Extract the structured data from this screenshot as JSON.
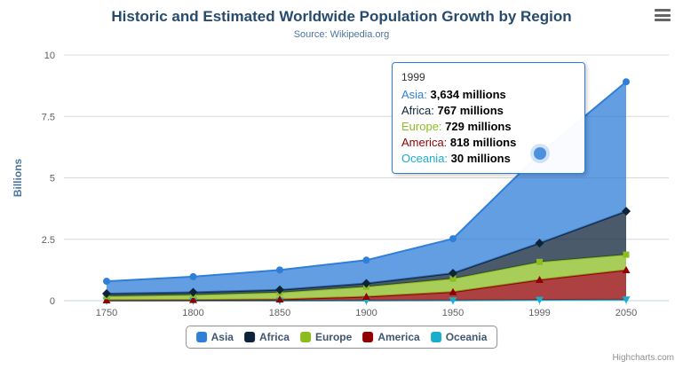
{
  "credits": "Highcharts.com",
  "chart_data": {
    "type": "area",
    "stacked": true,
    "title": "Historic and Estimated Worldwide Population Growth by Region",
    "subtitle": "Source: Wikipedia.org",
    "ylabel": "Billions",
    "ylim": [
      0,
      10
    ],
    "yticks": [
      0,
      2.5,
      5,
      7.5,
      10
    ],
    "categories": [
      "1750",
      "1800",
      "1850",
      "1900",
      "1950",
      "1999",
      "2050"
    ],
    "values_unit": "millions",
    "legend_position": "bottom",
    "series": [
      {
        "name": "Asia",
        "color": "#2f7ed8",
        "marker": "circle",
        "values": [
          502,
          635,
          809,
          947,
          1402,
          3634,
          5268
        ]
      },
      {
        "name": "Africa",
        "color": "#0d233a",
        "marker": "diamond",
        "values": [
          106,
          107,
          111,
          133,
          221,
          767,
          1766
        ]
      },
      {
        "name": "Europe",
        "color": "#8bbc21",
        "marker": "square",
        "values": [
          163,
          203,
          276,
          408,
          547,
          729,
          628
        ]
      },
      {
        "name": "America",
        "color": "#910000",
        "marker": "triangle",
        "values": [
          18,
          31,
          54,
          156,
          339,
          818,
          1201
        ]
      },
      {
        "name": "Oceania",
        "color": "#1aadce",
        "marker": "triangle-down",
        "values": [
          2,
          2,
          2,
          6,
          13,
          30,
          46
        ]
      }
    ],
    "hover_series": "Asia",
    "tooltip": {
      "header": "1999",
      "rows": [
        {
          "label": "Asia",
          "value": "3,634 millions"
        },
        {
          "label": "Africa",
          "value": "767 millions"
        },
        {
          "label": "Europe",
          "value": "729 millions"
        },
        {
          "label": "America",
          "value": "818 millions"
        },
        {
          "label": "Oceania",
          "value": "30 millions"
        }
      ]
    }
  }
}
